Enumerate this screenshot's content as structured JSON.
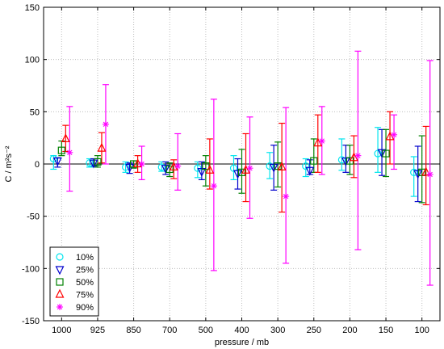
{
  "chart_data": {
    "type": "scatter",
    "title": "",
    "xlabel": "pressure / mb",
    "ylabel": "C / m²s⁻²",
    "ylim": [
      -150,
      150
    ],
    "yticks": [
      -150,
      -100,
      -50,
      0,
      50,
      100,
      150
    ],
    "grid": true,
    "legend_position": "bottom-left",
    "categories": [
      "1000",
      "925",
      "850",
      "700",
      "500",
      "400",
      "300",
      "250",
      "200",
      "150",
      "100"
    ],
    "series": [
      {
        "name": "10%",
        "marker": "circle",
        "color": "#00e5ee",
        "values": [
          5,
          1,
          -3,
          -3,
          -4,
          -4,
          -2,
          -2,
          4,
          10,
          -8
        ],
        "errors": [
          [
            -5,
            8
          ],
          [
            -3,
            5
          ],
          [
            -8,
            2
          ],
          [
            -7,
            2
          ],
          [
            -13,
            2
          ],
          [
            -15,
            8
          ],
          [
            -14,
            11
          ],
          [
            -12,
            5
          ],
          [
            -6,
            24
          ],
          [
            -8,
            35
          ],
          [
            -31,
            7
          ]
        ]
      },
      {
        "name": "25%",
        "marker": "triangle-down",
        "color": "#0000cc",
        "values": [
          3,
          1,
          -3,
          -4,
          -7,
          -9,
          -3,
          -6,
          3,
          11,
          -9
        ],
        "errors": [
          [
            -3,
            6
          ],
          [
            -2,
            5
          ],
          [
            -9,
            1
          ],
          [
            -10,
            2
          ],
          [
            -15,
            2
          ],
          [
            -24,
            5
          ],
          [
            -25,
            18
          ],
          [
            -10,
            4
          ],
          [
            -8,
            18
          ],
          [
            -11,
            33
          ],
          [
            -36,
            17
          ]
        ]
      },
      {
        "name": "50%",
        "marker": "square",
        "color": "#008000",
        "values": [
          13,
          2,
          0,
          -5,
          -2,
          -8,
          -2,
          3,
          3,
          10,
          -8
        ],
        "errors": [
          [
            8,
            22
          ],
          [
            -3,
            8
          ],
          [
            -4,
            3
          ],
          [
            -12,
            1
          ],
          [
            -21,
            8
          ],
          [
            -28,
            14
          ],
          [
            -22,
            21
          ],
          [
            -8,
            24
          ],
          [
            -10,
            18
          ],
          [
            -12,
            33
          ],
          [
            -37,
            27
          ]
        ]
      },
      {
        "name": "75%",
        "marker": "triangle-up",
        "color": "#ff0000",
        "values": [
          24,
          15,
          0,
          -3,
          -6,
          -6,
          -3,
          20,
          6,
          26,
          -8
        ],
        "errors": [
          [
            12,
            37
          ],
          [
            1,
            30
          ],
          [
            -8,
            8
          ],
          [
            -14,
            4
          ],
          [
            -24,
            24
          ],
          [
            -36,
            29
          ],
          [
            -46,
            39
          ],
          [
            -8,
            47
          ],
          [
            -13,
            27
          ],
          [
            0,
            50
          ],
          [
            -39,
            36
          ]
        ]
      },
      {
        "name": "90%",
        "marker": "star",
        "color": "#ff00ff",
        "values": [
          11,
          38,
          0,
          -2,
          -21,
          -4,
          -31,
          22,
          8,
          28,
          -10
        ],
        "errors": [
          [
            -26,
            55
          ],
          [
            0,
            76
          ],
          [
            -15,
            17
          ],
          [
            -25,
            29
          ],
          [
            -102,
            62
          ],
          [
            -52,
            45
          ],
          [
            -95,
            54
          ],
          [
            -10,
            55
          ],
          [
            -82,
            108
          ],
          [
            -5,
            47
          ],
          [
            -116,
            99
          ]
        ]
      }
    ]
  }
}
